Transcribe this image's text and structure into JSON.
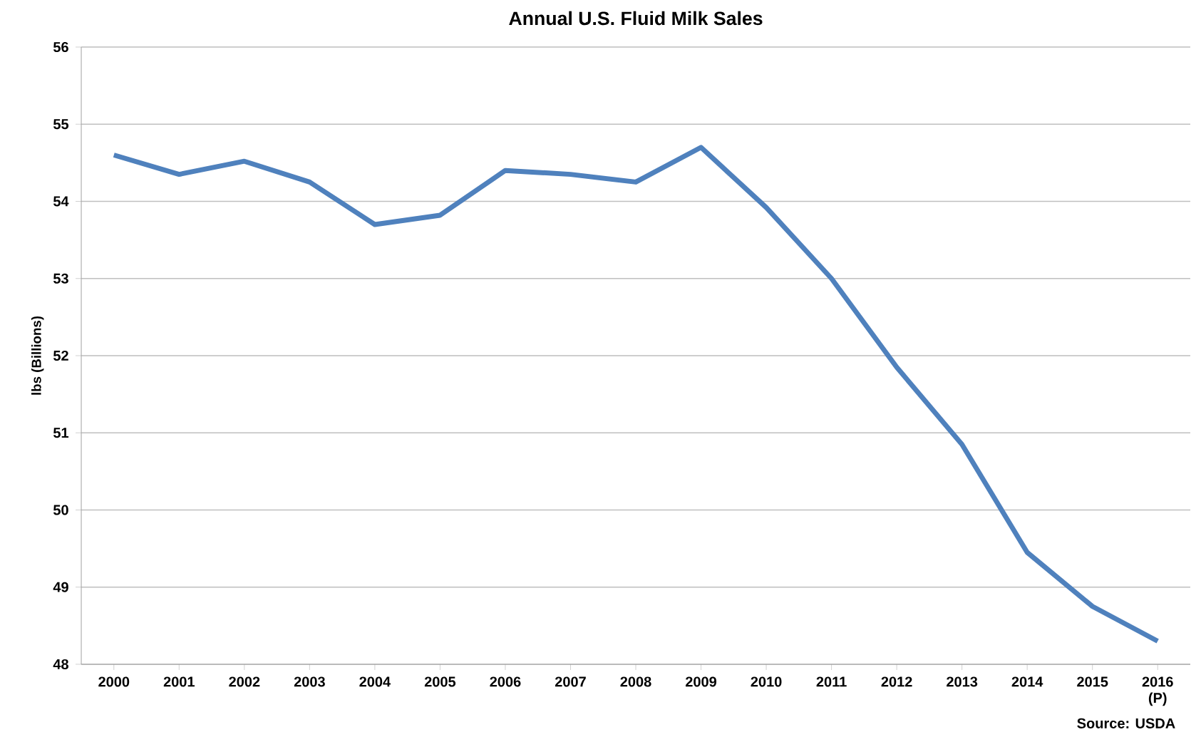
{
  "chart_data": {
    "type": "line",
    "title": "Annual U.S. Fluid Milk Sales",
    "ylabel": "lbs (Billions)",
    "categories": [
      "2000",
      "2001",
      "2002",
      "2003",
      "2004",
      "2005",
      "2006",
      "2007",
      "2008",
      "2009",
      "2010",
      "2011",
      "2012",
      "2013",
      "2014",
      "2015",
      "2016 (P)"
    ],
    "series": [
      {
        "color": "#4f81bd",
        "values": [
          54.6,
          54.35,
          54.52,
          54.25,
          53.7,
          53.82,
          54.4,
          54.35,
          54.25,
          54.7,
          53.92,
          53.0,
          51.85,
          50.85,
          49.45,
          48.75,
          48.3
        ]
      }
    ],
    "ylim": [
      48,
      56
    ],
    "yticks": [
      48,
      49,
      50,
      51,
      52,
      53,
      54,
      55,
      56
    ],
    "grid": "y",
    "marker": "none",
    "line_style": "solid",
    "annotations": [
      "Source: USDA"
    ]
  }
}
